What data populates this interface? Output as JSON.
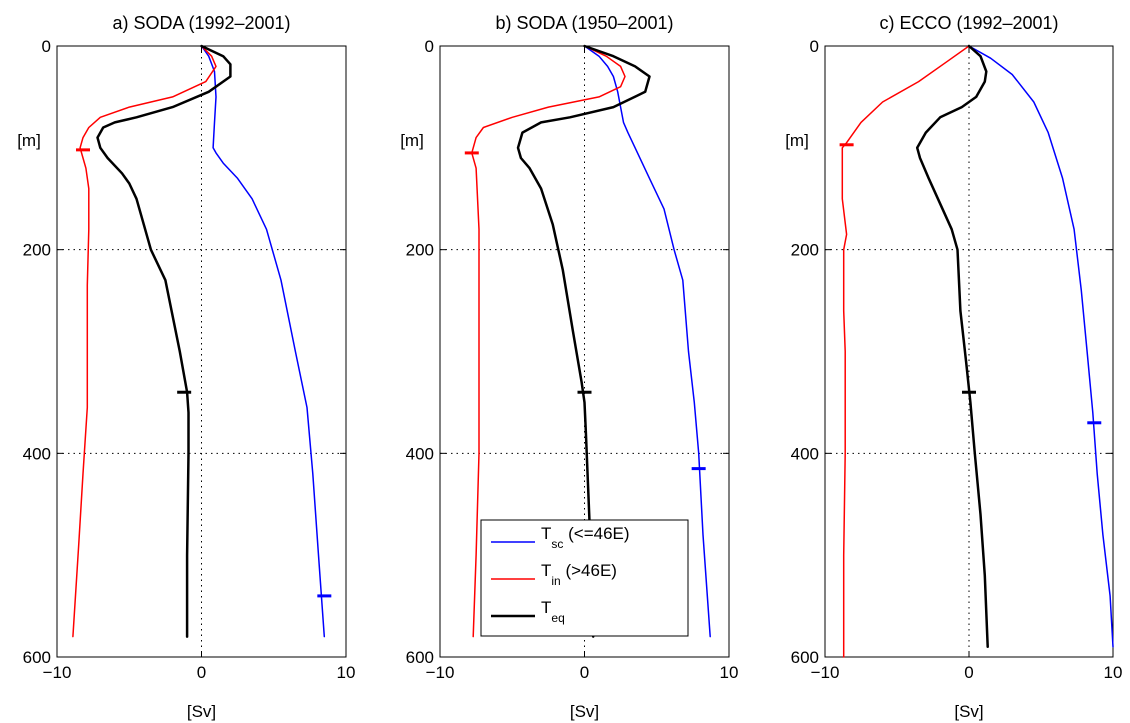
{
  "figure": {
    "background": "#ffffff"
  },
  "chart_data": [
    {
      "type": "line",
      "title": "a) SODA (1992–2001)",
      "xlabel": "[Sv]",
      "ylabel": "[m]",
      "xlim": [
        -10,
        10
      ],
      "ylim": [
        600,
        0
      ],
      "y_axis_inverted": true,
      "xticks": [
        "−10",
        "0",
        "10"
      ],
      "yticks": [
        "0",
        "200",
        "400",
        "600"
      ],
      "grid": "dotted at x = 0 and y = 200, 400",
      "series": [
        {
          "key": "tsc",
          "color": "#0000ff",
          "width": 1.5,
          "points": [
            [
              0,
              0
            ],
            [
              0.5,
              10
            ],
            [
              0.9,
              25
            ],
            [
              1.0,
              50
            ],
            [
              0.9,
              75
            ],
            [
              0.8,
              100
            ],
            [
              1.0,
              105
            ],
            [
              1.5,
              115
            ],
            [
              2.5,
              130
            ],
            [
              3.5,
              150
            ],
            [
              4.5,
              180
            ],
            [
              5.5,
              230
            ],
            [
              6.5,
              300
            ],
            [
              7.3,
              355
            ],
            [
              7.7,
              420
            ],
            [
              8.1,
              500
            ],
            [
              8.5,
              580
            ]
          ],
          "marker": [
            8.5,
            540
          ]
        },
        {
          "key": "tin",
          "color": "#ff0000",
          "width": 1.5,
          "points": [
            [
              0,
              0
            ],
            [
              0.7,
              10
            ],
            [
              1.0,
              20
            ],
            [
              0.3,
              35
            ],
            [
              -2.0,
              50
            ],
            [
              -5.0,
              60
            ],
            [
              -7.0,
              70
            ],
            [
              -7.8,
              80
            ],
            [
              -8.2,
              90
            ],
            [
              -8.4,
              100
            ],
            [
              -8.2,
              110
            ],
            [
              -8.0,
              120
            ],
            [
              -7.8,
              140
            ],
            [
              -7.8,
              180
            ],
            [
              -7.9,
              235
            ],
            [
              -7.9,
              300
            ],
            [
              -7.9,
              355
            ],
            [
              -8.2,
              420
            ],
            [
              -8.5,
              490
            ],
            [
              -8.9,
              580
            ]
          ],
          "marker": [
            -8.2,
            102
          ]
        },
        {
          "key": "teq",
          "color": "#000000",
          "width": 2.5,
          "points": [
            [
              0,
              0
            ],
            [
              1.5,
              10
            ],
            [
              2.0,
              18
            ],
            [
              2.0,
              30
            ],
            [
              0.5,
              45
            ],
            [
              -2.0,
              60
            ],
            [
              -4.5,
              70
            ],
            [
              -6.0,
              75
            ],
            [
              -6.8,
              80
            ],
            [
              -7.2,
              90
            ],
            [
              -7.0,
              100
            ],
            [
              -6.5,
              110
            ],
            [
              -5.5,
              125
            ],
            [
              -5.0,
              135
            ],
            [
              -4.5,
              150
            ],
            [
              -4.0,
              175
            ],
            [
              -3.5,
              200
            ],
            [
              -2.5,
              230
            ],
            [
              -1.5,
              300
            ],
            [
              -1.0,
              340
            ],
            [
              -0.9,
              360
            ],
            [
              -0.9,
              400
            ],
            [
              -1.0,
              500
            ],
            [
              -1.0,
              580
            ]
          ],
          "marker": [
            -1.2,
            340
          ]
        }
      ]
    },
    {
      "type": "line",
      "title": "b) SODA (1950–2001)",
      "xlabel": "[Sv]",
      "ylabel": "[m]",
      "xlim": [
        -10,
        10
      ],
      "ylim": [
        600,
        0
      ],
      "y_axis_inverted": true,
      "xticks": [
        "−10",
        "0",
        "10"
      ],
      "yticks": [
        "0",
        "200",
        "400",
        "600"
      ],
      "grid": "dotted at x = 0 and y = 200, 400",
      "series": [
        {
          "key": "tsc",
          "color": "#0000ff",
          "width": 1.5,
          "points": [
            [
              0,
              0
            ],
            [
              1.0,
              10
            ],
            [
              1.6,
              20
            ],
            [
              2.0,
              30
            ],
            [
              2.3,
              45
            ],
            [
              2.5,
              60
            ],
            [
              2.7,
              75
            ],
            [
              3.0,
              85
            ],
            [
              3.5,
              100
            ],
            [
              4.5,
              130
            ],
            [
              5.5,
              160
            ],
            [
              6.2,
              200
            ],
            [
              6.8,
              230
            ],
            [
              7.2,
              300
            ],
            [
              7.6,
              350
            ],
            [
              7.9,
              400
            ],
            [
              8.2,
              480
            ],
            [
              8.7,
              580
            ]
          ],
          "marker": [
            7.9,
            415
          ]
        },
        {
          "key": "tin",
          "color": "#ff0000",
          "width": 1.5,
          "points": [
            [
              0,
              0
            ],
            [
              1.5,
              10
            ],
            [
              2.5,
              20
            ],
            [
              2.8,
              30
            ],
            [
              2.5,
              40
            ],
            [
              1.0,
              50
            ],
            [
              -2.5,
              60
            ],
            [
              -5.0,
              70
            ],
            [
              -7.0,
              80
            ],
            [
              -7.5,
              90
            ],
            [
              -7.8,
              105
            ],
            [
              -7.5,
              120
            ],
            [
              -7.3,
              180
            ],
            [
              -7.3,
              300
            ],
            [
              -7.3,
              400
            ],
            [
              -7.5,
              500
            ],
            [
              -7.7,
              580
            ]
          ],
          "marker": [
            -7.8,
            105
          ]
        },
        {
          "key": "teq",
          "color": "#000000",
          "width": 2.5,
          "points": [
            [
              0,
              0
            ],
            [
              2.0,
              10
            ],
            [
              3.5,
              20
            ],
            [
              4.5,
              30
            ],
            [
              4.2,
              45
            ],
            [
              2.0,
              60
            ],
            [
              -1.0,
              70
            ],
            [
              -3.0,
              75
            ],
            [
              -4.3,
              85
            ],
            [
              -4.6,
              100
            ],
            [
              -4.4,
              110
            ],
            [
              -3.8,
              120
            ],
            [
              -3.0,
              140
            ],
            [
              -2.2,
              175
            ],
            [
              -1.5,
              220
            ],
            [
              -0.8,
              280
            ],
            [
              -0.2,
              330
            ],
            [
              0.0,
              350
            ],
            [
              0.1,
              380
            ],
            [
              0.3,
              450
            ],
            [
              0.5,
              520
            ],
            [
              0.6,
              580
            ]
          ],
          "marker": [
            0.0,
            340
          ]
        }
      ],
      "legend": {
        "position": "bottom-right",
        "entries": [
          {
            "key": "tsc",
            "main": "T",
            "sub": "sc",
            "rest": " (<=46E)"
          },
          {
            "key": "tin",
            "main": "T",
            "sub": "in",
            "rest": " (>46E)"
          },
          {
            "key": "teq",
            "main": "T",
            "sub": "eq",
            "rest": ""
          }
        ]
      }
    },
    {
      "type": "line",
      "title": "c) ECCO (1992–2001)",
      "xlabel": "[Sv]",
      "ylabel": "[m]",
      "xlim": [
        -10,
        10
      ],
      "ylim": [
        600,
        0
      ],
      "y_axis_inverted": true,
      "xticks": [
        "−10",
        "0",
        "10"
      ],
      "yticks": [
        "0",
        "200",
        "400",
        "600"
      ],
      "grid": "dotted at x = 0 and y = 200, 400",
      "series": [
        {
          "key": "tsc",
          "color": "#0000ff",
          "width": 1.5,
          "points": [
            [
              0,
              0
            ],
            [
              1.5,
              12
            ],
            [
              3.0,
              28
            ],
            [
              4.5,
              55
            ],
            [
              5.5,
              85
            ],
            [
              6.5,
              130
            ],
            [
              7.3,
              180
            ],
            [
              7.8,
              240
            ],
            [
              8.2,
              300
            ],
            [
              8.6,
              360
            ],
            [
              8.9,
              420
            ],
            [
              9.3,
              480
            ],
            [
              9.8,
              540
            ],
            [
              10.0,
              590
            ]
          ],
          "marker": [
            8.7,
            370
          ]
        },
        {
          "key": "tin",
          "color": "#ff0000",
          "width": 1.5,
          "points": [
            [
              0,
              0
            ],
            [
              -1.5,
              15
            ],
            [
              -3.5,
              35
            ],
            [
              -6.0,
              55
            ],
            [
              -7.5,
              75
            ],
            [
              -8.5,
              95
            ],
            [
              -8.8,
              100
            ],
            [
              -8.8,
              110
            ],
            [
              -8.8,
              130
            ],
            [
              -8.8,
              150
            ],
            [
              -8.5,
              185
            ],
            [
              -8.7,
              200
            ],
            [
              -8.7,
              260
            ],
            [
              -8.6,
              300
            ],
            [
              -8.6,
              400
            ],
            [
              -8.7,
              500
            ],
            [
              -8.7,
              600
            ]
          ],
          "marker": [
            -8.5,
            97
          ]
        },
        {
          "key": "teq",
          "color": "#000000",
          "width": 2.5,
          "points": [
            [
              0,
              0
            ],
            [
              0.8,
              10
            ],
            [
              1.2,
              25
            ],
            [
              1.1,
              35
            ],
            [
              0.5,
              50
            ],
            [
              -0.5,
              60
            ],
            [
              -2.0,
              70
            ],
            [
              -3.0,
              85
            ],
            [
              -3.6,
              100
            ],
            [
              -3.4,
              110
            ],
            [
              -2.8,
              130
            ],
            [
              -2.0,
              155
            ],
            [
              -1.2,
              180
            ],
            [
              -0.8,
              200
            ],
            [
              -0.6,
              260
            ],
            [
              -0.2,
              310
            ],
            [
              0.1,
              350
            ],
            [
              0.4,
              400
            ],
            [
              0.8,
              460
            ],
            [
              1.1,
              520
            ],
            [
              1.3,
              590
            ]
          ],
          "marker": [
            0.0,
            340
          ]
        }
      ]
    }
  ]
}
